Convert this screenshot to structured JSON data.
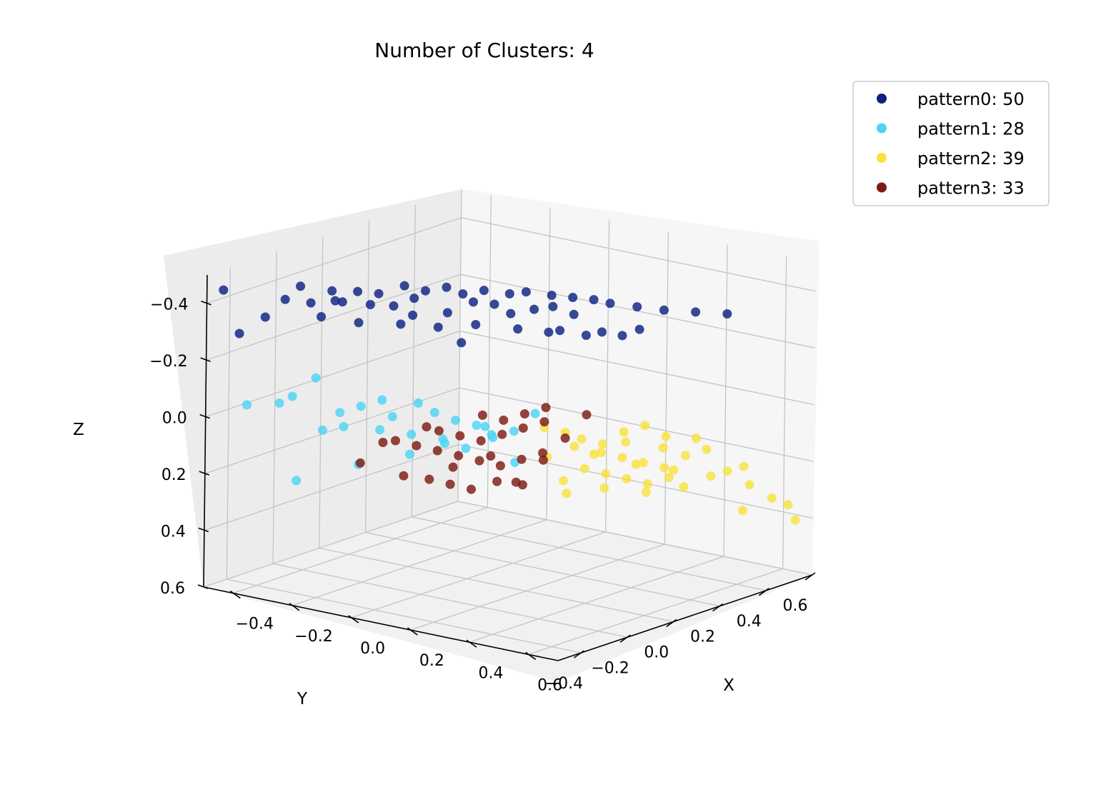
{
  "chart_data": {
    "type": "scatter",
    "title": "Number of Clusters: 4",
    "xlabel": "X",
    "ylabel": "Y",
    "zlabel": "Z",
    "xlim": [
      -0.5,
      0.7
    ],
    "ylim": [
      -0.5,
      0.6
    ],
    "zlim": [
      -0.5,
      0.6
    ],
    "z_axis_inverted": true,
    "xticks": [
      "−0.4",
      "−0.2",
      "0.0",
      "0.2",
      "0.4",
      "0.6"
    ],
    "yticks": [
      "−0.4",
      "−0.2",
      "0.0",
      "0.2",
      "0.4",
      "0.6"
    ],
    "zticks": [
      "−0.4",
      "−0.2",
      "0.0",
      "0.2",
      "0.4",
      "0.6"
    ],
    "grid": true,
    "legend_position": "top-right",
    "series": [
      {
        "name": "pattern0: 50",
        "color": "#0d2184",
        "points": [
          [
            -0.36,
            -0.34,
            -0.4
          ],
          [
            -0.32,
            -0.28,
            -0.38
          ],
          [
            -0.3,
            -0.2,
            -0.37
          ],
          [
            -0.26,
            -0.22,
            -0.38
          ],
          [
            -0.22,
            -0.15,
            -0.36
          ],
          [
            -0.18,
            -0.1,
            -0.35
          ],
          [
            -0.15,
            -0.05,
            -0.37
          ],
          [
            -0.1,
            -0.12,
            -0.34
          ],
          [
            -0.06,
            -0.02,
            -0.33
          ],
          [
            -0.02,
            0.04,
            -0.36
          ],
          [
            0.02,
            0.08,
            -0.35
          ],
          [
            0.06,
            0.1,
            -0.32
          ],
          [
            0.1,
            0.15,
            -0.33
          ],
          [
            0.14,
            0.18,
            -0.34
          ],
          [
            0.18,
            0.22,
            -0.31
          ],
          [
            -0.34,
            -0.3,
            -0.44
          ],
          [
            -0.28,
            -0.24,
            -0.42
          ],
          [
            -0.24,
            -0.18,
            -0.41
          ],
          [
            -0.2,
            -0.14,
            -0.4
          ],
          [
            -0.16,
            -0.08,
            -0.42
          ],
          [
            -0.12,
            -0.04,
            -0.4
          ],
          [
            -0.08,
            0.0,
            -0.41
          ],
          [
            -0.04,
            0.02,
            -0.39
          ],
          [
            0.0,
            0.06,
            -0.4
          ],
          [
            0.04,
            0.12,
            -0.38
          ],
          [
            0.08,
            0.14,
            -0.39
          ],
          [
            0.12,
            0.2,
            -0.37
          ],
          [
            0.16,
            0.24,
            -0.36
          ],
          [
            0.2,
            0.28,
            -0.35
          ],
          [
            0.24,
            0.3,
            -0.34
          ],
          [
            0.3,
            0.34,
            -0.33
          ],
          [
            0.36,
            0.38,
            -0.32
          ],
          [
            0.42,
            0.44,
            -0.31
          ],
          [
            0.48,
            0.5,
            -0.3
          ],
          [
            -0.38,
            -0.4,
            -0.35
          ],
          [
            -0.3,
            -0.26,
            -0.33
          ],
          [
            -0.22,
            -0.2,
            -0.31
          ],
          [
            -0.14,
            -0.12,
            -0.3
          ],
          [
            -0.06,
            -0.06,
            -0.29
          ],
          [
            0.02,
            0.0,
            -0.3
          ],
          [
            0.1,
            0.08,
            -0.28
          ],
          [
            0.18,
            0.16,
            -0.27
          ],
          [
            0.26,
            0.24,
            -0.26
          ],
          [
            0.34,
            0.3,
            -0.27
          ],
          [
            -0.42,
            -0.46,
            -0.3
          ],
          [
            -0.46,
            -0.48,
            -0.45
          ],
          [
            0.22,
            0.06,
            -0.3
          ],
          [
            0.3,
            0.12,
            -0.29
          ],
          [
            0.36,
            0.2,
            -0.28
          ],
          [
            0.05,
            -0.1,
            -0.27
          ]
        ]
      },
      {
        "name": "pattern1: 28",
        "color": "#4dd4f5",
        "points": [
          [
            -0.4,
            -0.45,
            -0.05
          ],
          [
            -0.36,
            -0.36,
            -0.04
          ],
          [
            -0.34,
            -0.33,
            -0.06
          ],
          [
            -0.3,
            -0.28,
            -0.12
          ],
          [
            -0.28,
            -0.2,
            0.02
          ],
          [
            -0.24,
            -0.16,
            0.0
          ],
          [
            -0.2,
            -0.12,
            -0.02
          ],
          [
            -0.18,
            -0.1,
            0.04
          ],
          [
            -0.14,
            -0.04,
            0.0
          ],
          [
            -0.1,
            -0.02,
            0.03
          ],
          [
            -0.06,
            0.02,
            0.06
          ],
          [
            -0.02,
            0.06,
            0.08
          ],
          [
            0.02,
            0.08,
            0.12
          ],
          [
            0.06,
            0.12,
            0.1
          ],
          [
            -0.2,
            -0.22,
            0.18
          ],
          [
            -0.12,
            -0.1,
            0.16
          ],
          [
            -0.08,
            0.0,
            0.14
          ],
          [
            -0.04,
            0.04,
            0.16
          ],
          [
            0.0,
            0.1,
            0.12
          ],
          [
            -0.26,
            -0.3,
            0.05
          ],
          [
            -0.22,
            -0.26,
            0.04
          ],
          [
            -0.16,
            -0.18,
            0.06
          ],
          [
            -0.1,
            -0.12,
            0.08
          ],
          [
            -0.04,
            -0.06,
            0.1
          ],
          [
            0.04,
            0.02,
            0.06
          ],
          [
            0.1,
            0.16,
            0.04
          ],
          [
            -0.3,
            -0.36,
            0.22
          ],
          [
            0.08,
            0.1,
            0.2
          ]
        ]
      },
      {
        "name": "pattern2: 39",
        "color": "#f8e23f",
        "points": [
          [
            0.1,
            0.2,
            0.1
          ],
          [
            0.14,
            0.24,
            0.12
          ],
          [
            0.18,
            0.26,
            0.14
          ],
          [
            0.22,
            0.3,
            0.16
          ],
          [
            0.26,
            0.34,
            0.12
          ],
          [
            0.3,
            0.38,
            0.1
          ],
          [
            0.34,
            0.42,
            0.14
          ],
          [
            0.2,
            0.32,
            0.2
          ],
          [
            0.24,
            0.36,
            0.22
          ],
          [
            0.28,
            0.4,
            0.24
          ],
          [
            0.32,
            0.44,
            0.26
          ],
          [
            0.36,
            0.48,
            0.22
          ],
          [
            0.4,
            0.52,
            0.2
          ],
          [
            0.16,
            0.3,
            0.26
          ],
          [
            0.2,
            0.34,
            0.28
          ],
          [
            0.24,
            0.38,
            0.3
          ],
          [
            0.28,
            0.42,
            0.32
          ],
          [
            0.32,
            0.46,
            0.3
          ],
          [
            0.12,
            0.26,
            0.3
          ],
          [
            0.18,
            0.36,
            0.34
          ],
          [
            0.26,
            0.44,
            0.36
          ],
          [
            0.34,
            0.5,
            0.34
          ],
          [
            0.44,
            0.56,
            0.28
          ],
          [
            0.5,
            0.58,
            0.32
          ],
          [
            0.56,
            0.6,
            0.36
          ],
          [
            0.6,
            0.62,
            0.38
          ],
          [
            0.14,
            0.28,
            0.18
          ],
          [
            0.22,
            0.4,
            0.18
          ],
          [
            0.3,
            0.46,
            0.2
          ],
          [
            0.38,
            0.5,
            0.16
          ],
          [
            0.08,
            0.24,
            0.22
          ],
          [
            0.16,
            0.34,
            0.22
          ],
          [
            0.24,
            0.42,
            0.26
          ],
          [
            0.32,
            0.48,
            0.28
          ],
          [
            0.4,
            0.54,
            0.3
          ],
          [
            0.48,
            0.58,
            0.26
          ],
          [
            0.1,
            0.3,
            0.36
          ],
          [
            0.64,
            0.6,
            0.42
          ],
          [
            0.54,
            0.5,
            0.38
          ]
        ]
      },
      {
        "name": "pattern3: 33",
        "color": "#7d1a12",
        "points": [
          [
            -0.1,
            0.0,
            0.1
          ],
          [
            -0.06,
            0.04,
            0.12
          ],
          [
            -0.02,
            0.08,
            0.14
          ],
          [
            0.02,
            0.12,
            0.12
          ],
          [
            0.06,
            0.16,
            0.1
          ],
          [
            0.1,
            0.2,
            0.08
          ],
          [
            -0.08,
            0.06,
            0.2
          ],
          [
            -0.04,
            0.1,
            0.22
          ],
          [
            0.0,
            0.14,
            0.24
          ],
          [
            0.04,
            0.18,
            0.22
          ],
          [
            0.08,
            0.22,
            0.2
          ],
          [
            -0.12,
            0.02,
            0.18
          ],
          [
            -0.16,
            -0.02,
            0.16
          ],
          [
            -0.2,
            -0.06,
            0.14
          ],
          [
            0.0,
            0.06,
            0.04
          ],
          [
            0.04,
            0.1,
            0.06
          ],
          [
            0.08,
            0.14,
            0.04
          ],
          [
            0.12,
            0.18,
            0.02
          ],
          [
            -0.14,
            -0.1,
            0.24
          ],
          [
            -0.1,
            -0.04,
            0.26
          ],
          [
            -0.06,
            0.0,
            0.28
          ],
          [
            -0.02,
            0.04,
            0.3
          ],
          [
            0.02,
            0.1,
            0.28
          ],
          [
            0.06,
            0.16,
            0.3
          ],
          [
            -0.24,
            -0.16,
            0.2
          ],
          [
            -0.18,
            -0.14,
            0.12
          ],
          [
            0.14,
            0.24,
            0.14
          ],
          [
            0.18,
            0.28,
            0.06
          ],
          [
            0.1,
            0.08,
            0.26
          ],
          [
            -0.02,
            -0.04,
            0.2
          ],
          [
            0.06,
            0.02,
            0.16
          ],
          [
            -0.08,
            -0.08,
            0.06
          ],
          [
            0.16,
            0.12,
            0.18
          ]
        ]
      }
    ]
  }
}
